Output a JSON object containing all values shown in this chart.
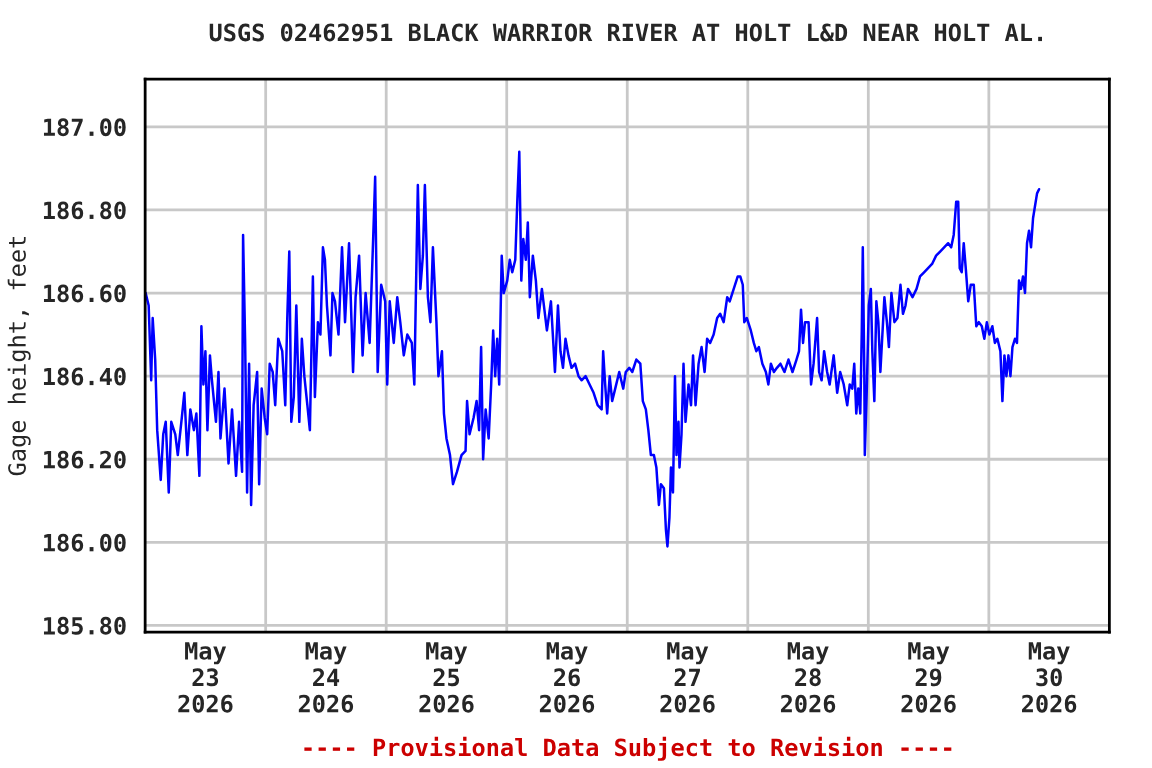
{
  "chart_data": {
    "type": "line",
    "title": "USGS 02462951 BLACK WARRIOR RIVER AT HOLT L&D NEAR HOLT AL.",
    "ylabel": "Gage height, feet",
    "annotations": [
      "---- Provisional Data Subject to Revision ----"
    ],
    "xlim": [
      "2026-05-23T00:00",
      "2026-05-31T00:00"
    ],
    "xticks": [
      {
        "value": "2026-05-24T00:00",
        "label": null
      },
      {
        "value": "2026-05-25T00:00",
        "label": null
      },
      {
        "value": "2026-05-26T00:00",
        "label": null
      },
      {
        "value": "2026-05-27T00:00",
        "label": null
      },
      {
        "value": "2026-05-28T00:00",
        "label": null
      },
      {
        "value": "2026-05-29T00:00",
        "label": null
      },
      {
        "value": "2026-05-30T00:00",
        "label": null
      },
      {
        "value": "2026-05-23T12:00",
        "label": "May\n23\n2026"
      },
      {
        "value": "2026-05-24T12:00",
        "label": "May\n24\n2026"
      },
      {
        "value": "2026-05-25T12:00",
        "label": "May\n25\n2026"
      },
      {
        "value": "2026-05-26T12:00",
        "label": "May\n26\n2026"
      },
      {
        "value": "2026-05-27T12:00",
        "label": "May\n27\n2026"
      },
      {
        "value": "2026-05-28T12:00",
        "label": "May\n28\n2026"
      },
      {
        "value": "2026-05-29T12:00",
        "label": "May\n29\n2026"
      },
      {
        "value": "2026-05-30T12:00",
        "label": "May\n30\n2026"
      }
    ],
    "ylim": [
      185.784,
      187.115
    ],
    "yticks": [
      {
        "value": 185.8,
        "label": "185.80"
      },
      {
        "value": 186.0,
        "label": "186.00"
      },
      {
        "value": 186.2,
        "label": "186.20"
      },
      {
        "value": 186.4,
        "label": "186.40"
      },
      {
        "value": 186.6,
        "label": "186.60"
      },
      {
        "value": 186.8,
        "label": "186.80"
      },
      {
        "value": 187.0,
        "label": "187.00"
      }
    ],
    "grid": true,
    "legend": false,
    "marker": "none",
    "line_style": "solid",
    "series": [
      {
        "color": "#0000ff",
        "x": [
          "2026-05-23T00:06",
          "2026-05-23T00:42",
          "2026-05-23T01:12",
          "2026-05-23T01:30",
          "2026-05-23T02:00",
          "2026-05-23T02:24",
          "2026-05-23T03:06",
          "2026-05-23T03:36",
          "2026-05-23T04:06",
          "2026-05-23T04:42",
          "2026-05-23T05:12",
          "2026-05-23T06:00",
          "2026-05-23T06:30",
          "2026-05-23T07:18",
          "2026-05-23T07:48",
          "2026-05-23T08:24",
          "2026-05-23T09:00",
          "2026-05-23T09:42",
          "2026-05-23T10:12",
          "2026-05-23T10:48",
          "2026-05-23T11:12",
          "2026-05-23T11:36",
          "2026-05-23T12:00",
          "2026-05-23T12:24",
          "2026-05-23T12:54",
          "2026-05-23T13:18",
          "2026-05-23T14:06",
          "2026-05-23T14:36",
          "2026-05-23T15:00",
          "2026-05-23T15:48",
          "2026-05-23T16:36",
          "2026-05-23T17:18",
          "2026-05-23T18:06",
          "2026-05-23T18:42",
          "2026-05-23T19:18",
          "2026-05-23T19:30",
          "2026-05-23T19:54",
          "2026-05-23T20:18",
          "2026-05-23T20:42",
          "2026-05-23T21:06",
          "2026-05-23T21:36",
          "2026-05-23T22:18",
          "2026-05-23T22:42",
          "2026-05-23T23:12",
          "2026-05-23T23:48",
          "2026-05-24T00:18",
          "2026-05-24T00:48",
          "2026-05-24T01:24",
          "2026-05-24T01:54",
          "2026-05-24T02:30",
          "2026-05-24T03:18",
          "2026-05-24T03:54",
          "2026-05-24T04:18",
          "2026-05-24T04:42",
          "2026-05-24T05:06",
          "2026-05-24T05:36",
          "2026-05-24T06:06",
          "2026-05-24T06:42",
          "2026-05-24T07:12",
          "2026-05-24T07:42",
          "2026-05-24T08:18",
          "2026-05-24T08:48",
          "2026-05-24T09:24",
          "2026-05-24T09:48",
          "2026-05-24T10:24",
          "2026-05-24T10:54",
          "2026-05-24T11:24",
          "2026-05-24T11:48",
          "2026-05-24T12:12",
          "2026-05-24T12:54",
          "2026-05-24T13:18",
          "2026-05-24T13:48",
          "2026-05-24T14:30",
          "2026-05-24T15:12",
          "2026-05-24T15:48",
          "2026-05-24T16:36",
          "2026-05-24T17:24",
          "2026-05-24T17:54",
          "2026-05-24T18:36",
          "2026-05-24T19:18",
          "2026-05-24T19:54",
          "2026-05-24T20:42",
          "2026-05-24T21:24",
          "2026-05-24T21:48",
          "2026-05-24T22:18",
          "2026-05-24T23:00",
          "2026-05-24T23:48",
          "2026-05-25T00:12",
          "2026-05-25T00:42",
          "2026-05-25T01:30",
          "2026-05-25T02:12",
          "2026-05-25T02:48",
          "2026-05-25T03:30",
          "2026-05-25T04:12",
          "2026-05-25T05:06",
          "2026-05-25T05:36",
          "2026-05-25T05:54",
          "2026-05-25T06:18",
          "2026-05-25T06:48",
          "2026-05-25T07:18",
          "2026-05-25T07:42",
          "2026-05-25T08:18",
          "2026-05-25T08:48",
          "2026-05-25T09:18",
          "2026-05-25T10:00",
          "2026-05-25T10:24",
          "2026-05-25T11:06",
          "2026-05-25T11:30",
          "2026-05-25T12:00",
          "2026-05-25T12:42",
          "2026-05-25T13:18",
          "2026-05-25T14:06",
          "2026-05-25T15:00",
          "2026-05-25T15:48",
          "2026-05-25T16:06",
          "2026-05-25T16:36",
          "2026-05-25T17:24",
          "2026-05-25T18:00",
          "2026-05-25T18:30",
          "2026-05-25T18:54",
          "2026-05-25T19:18",
          "2026-05-25T19:48",
          "2026-05-25T20:24",
          "2026-05-25T20:54",
          "2026-05-25T21:18",
          "2026-05-25T21:42",
          "2026-05-25T22:06",
          "2026-05-25T22:30",
          "2026-05-25T23:00",
          "2026-05-25T23:24",
          "2026-05-26T00:06",
          "2026-05-26T00:36",
          "2026-05-26T01:06",
          "2026-05-26T01:42",
          "2026-05-26T02:06",
          "2026-05-26T02:30",
          "2026-05-26T02:54",
          "2026-05-26T03:18",
          "2026-05-26T03:48",
          "2026-05-26T04:12",
          "2026-05-26T04:36",
          "2026-05-26T05:12",
          "2026-05-26T05:48",
          "2026-05-26T06:18",
          "2026-05-26T07:00",
          "2026-05-26T07:30",
          "2026-05-26T08:00",
          "2026-05-26T08:48",
          "2026-05-26T09:36",
          "2026-05-26T10:12",
          "2026-05-26T10:42",
          "2026-05-26T11:12",
          "2026-05-26T11:42",
          "2026-05-26T12:18",
          "2026-05-26T12:54",
          "2026-05-26T13:36",
          "2026-05-26T14:18",
          "2026-05-26T14:54",
          "2026-05-26T15:42",
          "2026-05-26T16:30",
          "2026-05-26T17:18",
          "2026-05-26T18:06",
          "2026-05-26T18:54",
          "2026-05-26T19:12",
          "2026-05-26T19:36",
          "2026-05-26T20:00",
          "2026-05-26T20:30",
          "2026-05-26T21:00",
          "2026-05-26T21:36",
          "2026-05-26T22:24",
          "2026-05-26T23:12",
          "2026-05-26T23:42",
          "2026-05-27T00:24",
          "2026-05-27T01:00",
          "2026-05-27T01:48",
          "2026-05-27T02:36",
          "2026-05-27T03:06",
          "2026-05-27T03:42",
          "2026-05-27T04:12",
          "2026-05-27T04:42",
          "2026-05-27T05:18",
          "2026-05-27T05:48",
          "2026-05-27T06:18",
          "2026-05-27T06:42",
          "2026-05-27T07:18",
          "2026-05-27T07:42",
          "2026-05-27T08:00",
          "2026-05-27T08:24",
          "2026-05-27T08:42",
          "2026-05-27T09:06",
          "2026-05-27T09:30",
          "2026-05-27T09:48",
          "2026-05-27T10:12",
          "2026-05-27T10:24",
          "2026-05-27T10:48",
          "2026-05-27T11:12",
          "2026-05-27T11:36",
          "2026-05-27T12:12",
          "2026-05-27T12:42",
          "2026-05-27T13:06",
          "2026-05-27T13:36",
          "2026-05-27T14:12",
          "2026-05-27T14:48",
          "2026-05-27T15:24",
          "2026-05-27T15:54",
          "2026-05-27T16:30",
          "2026-05-27T17:12",
          "2026-05-27T17:54",
          "2026-05-27T18:30",
          "2026-05-27T19:12",
          "2026-05-27T19:54",
          "2026-05-27T20:24",
          "2026-05-27T21:12",
          "2026-05-27T22:00",
          "2026-05-27T22:30",
          "2026-05-27T23:00",
          "2026-05-27T23:18",
          "2026-05-27T23:48",
          "2026-05-28T00:36",
          "2026-05-28T01:12",
          "2026-05-28T01:42",
          "2026-05-28T02:12",
          "2026-05-28T02:54",
          "2026-05-28T03:36",
          "2026-05-28T04:06",
          "2026-05-28T04:36",
          "2026-05-28T05:12",
          "2026-05-28T05:48",
          "2026-05-28T06:30",
          "2026-05-28T07:18",
          "2026-05-28T08:06",
          "2026-05-28T08:54",
          "2026-05-28T09:42",
          "2026-05-28T10:12",
          "2026-05-28T10:36",
          "2026-05-28T11:00",
          "2026-05-28T11:24",
          "2026-05-28T12:06",
          "2026-05-28T12:36",
          "2026-05-28T13:06",
          "2026-05-28T13:48",
          "2026-05-28T14:12",
          "2026-05-28T14:42",
          "2026-05-28T15:12",
          "2026-05-28T15:48",
          "2026-05-28T16:18",
          "2026-05-28T17:06",
          "2026-05-28T17:48",
          "2026-05-28T18:24",
          "2026-05-28T19:06",
          "2026-05-28T19:48",
          "2026-05-28T20:18",
          "2026-05-28T20:48",
          "2026-05-28T21:12",
          "2026-05-28T21:36",
          "2026-05-28T22:00",
          "2026-05-28T22:24",
          "2026-05-28T22:42",
          "2026-05-28T22:54",
          "2026-05-28T23:12",
          "2026-05-28T23:18",
          "2026-05-28T23:42",
          "2026-05-29T00:06",
          "2026-05-29T00:30",
          "2026-05-29T00:48",
          "2026-05-29T01:12",
          "2026-05-29T01:36",
          "2026-05-29T02:00",
          "2026-05-29T02:24",
          "2026-05-29T02:48",
          "2026-05-29T03:12",
          "2026-05-29T03:42",
          "2026-05-29T04:06",
          "2026-05-29T04:36",
          "2026-05-29T05:12",
          "2026-05-29T05:48",
          "2026-05-29T06:24",
          "2026-05-29T06:54",
          "2026-05-29T07:24",
          "2026-05-29T07:54",
          "2026-05-29T08:48",
          "2026-05-29T09:36",
          "2026-05-29T10:18",
          "2026-05-29T11:06",
          "2026-05-29T11:54",
          "2026-05-29T12:42",
          "2026-05-29T13:30",
          "2026-05-29T14:18",
          "2026-05-29T15:06",
          "2026-05-29T15:54",
          "2026-05-29T16:30",
          "2026-05-29T17:00",
          "2026-05-29T17:30",
          "2026-05-29T17:54",
          "2026-05-29T18:12",
          "2026-05-29T18:36",
          "2026-05-29T19:00",
          "2026-05-29T19:24",
          "2026-05-29T19:54",
          "2026-05-29T20:24",
          "2026-05-29T21:00",
          "2026-05-29T21:30",
          "2026-05-29T22:00",
          "2026-05-29T22:36",
          "2026-05-29T23:06",
          "2026-05-29T23:36",
          "2026-05-30T00:06",
          "2026-05-30T00:42",
          "2026-05-30T01:12",
          "2026-05-30T01:42",
          "2026-05-30T02:18",
          "2026-05-30T02:42",
          "2026-05-30T03:06",
          "2026-05-30T03:30",
          "2026-05-30T03:54",
          "2026-05-30T04:18",
          "2026-05-30T04:42",
          "2026-05-30T05:12",
          "2026-05-30T05:36",
          "2026-05-30T06:00",
          "2026-05-30T06:24",
          "2026-05-30T06:48",
          "2026-05-30T07:12",
          "2026-05-30T07:36",
          "2026-05-30T08:00",
          "2026-05-30T08:24",
          "2026-05-30T08:48",
          "2026-05-30T09:12",
          "2026-05-30T09:36",
          "2026-05-30T10:00"
        ],
        "values": [
          186.6,
          186.57,
          186.39,
          186.54,
          186.44,
          186.27,
          186.15,
          186.26,
          186.29,
          186.12,
          186.29,
          186.26,
          186.21,
          186.3,
          186.36,
          186.21,
          186.32,
          186.27,
          186.31,
          186.16,
          186.52,
          186.38,
          186.46,
          186.27,
          186.45,
          186.39,
          186.29,
          186.41,
          186.25,
          186.37,
          186.19,
          186.32,
          186.16,
          186.29,
          186.17,
          186.74,
          186.49,
          186.12,
          186.43,
          186.09,
          186.33,
          186.41,
          186.14,
          186.37,
          186.3,
          186.26,
          186.43,
          186.41,
          186.33,
          186.49,
          186.46,
          186.33,
          186.54,
          186.7,
          186.29,
          186.35,
          186.57,
          186.29,
          186.49,
          186.4,
          186.33,
          186.27,
          186.64,
          186.35,
          186.53,
          186.5,
          186.71,
          186.68,
          186.57,
          186.45,
          186.6,
          186.58,
          186.5,
          186.71,
          186.53,
          186.72,
          186.41,
          186.59,
          186.69,
          186.45,
          186.6,
          186.48,
          186.73,
          186.88,
          186.41,
          186.62,
          186.58,
          186.38,
          186.58,
          186.48,
          186.59,
          186.53,
          186.45,
          186.5,
          186.48,
          186.38,
          186.59,
          186.86,
          186.61,
          186.69,
          186.86,
          186.59,
          186.53,
          186.71,
          186.53,
          186.4,
          186.46,
          186.31,
          186.25,
          186.21,
          186.14,
          186.17,
          186.21,
          186.22,
          186.34,
          186.26,
          186.3,
          186.34,
          186.27,
          186.47,
          186.2,
          186.32,
          186.25,
          186.38,
          186.51,
          186.4,
          186.49,
          186.38,
          186.69,
          186.6,
          186.63,
          186.68,
          186.65,
          186.68,
          186.82,
          186.94,
          186.63,
          186.73,
          186.68,
          186.77,
          186.59,
          186.69,
          186.63,
          186.54,
          186.61,
          186.56,
          186.51,
          186.58,
          186.41,
          186.57,
          186.46,
          186.42,
          186.49,
          186.45,
          186.42,
          186.43,
          186.4,
          186.39,
          186.4,
          186.38,
          186.36,
          186.33,
          186.32,
          186.46,
          186.38,
          186.31,
          186.4,
          186.34,
          186.37,
          186.41,
          186.37,
          186.41,
          186.42,
          186.41,
          186.44,
          186.43,
          186.34,
          186.32,
          186.27,
          186.21,
          186.21,
          186.18,
          186.09,
          186.14,
          186.13,
          186.03,
          185.99,
          186.06,
          186.18,
          186.12,
          186.4,
          186.21,
          186.29,
          186.18,
          186.26,
          186.43,
          186.29,
          186.38,
          186.33,
          186.45,
          186.33,
          186.43,
          186.47,
          186.41,
          186.49,
          186.48,
          186.5,
          186.54,
          186.55,
          186.53,
          186.59,
          186.58,
          186.61,
          186.64,
          186.64,
          186.62,
          186.53,
          186.54,
          186.51,
          186.48,
          186.46,
          186.47,
          186.43,
          186.41,
          186.38,
          186.43,
          186.41,
          186.42,
          186.43,
          186.41,
          186.44,
          186.41,
          186.44,
          186.46,
          186.56,
          186.48,
          186.53,
          186.53,
          186.38,
          186.43,
          186.54,
          186.41,
          186.39,
          186.46,
          186.41,
          186.38,
          186.45,
          186.36,
          186.41,
          186.38,
          186.33,
          186.38,
          186.37,
          186.43,
          186.31,
          186.37,
          186.31,
          186.51,
          186.71,
          186.41,
          186.21,
          186.37,
          186.57,
          186.61,
          186.46,
          186.34,
          186.58,
          186.53,
          186.41,
          186.5,
          186.59,
          186.53,
          186.47,
          186.6,
          186.53,
          186.54,
          186.62,
          186.55,
          186.57,
          186.61,
          186.59,
          186.61,
          186.64,
          186.65,
          186.66,
          186.67,
          186.69,
          186.7,
          186.71,
          186.72,
          186.71,
          186.74,
          186.82,
          186.82,
          186.66,
          186.65,
          186.72,
          186.66,
          186.58,
          186.62,
          186.62,
          186.52,
          186.53,
          186.52,
          186.49,
          186.53,
          186.5,
          186.52,
          186.48,
          186.49,
          186.46,
          186.34,
          186.45,
          186.4,
          186.45,
          186.4,
          186.47,
          186.49,
          186.48,
          186.63,
          186.61,
          186.64,
          186.6,
          186.72,
          186.75,
          186.71,
          186.78,
          186.81,
          186.84,
          186.85
        ]
      }
    ]
  }
}
